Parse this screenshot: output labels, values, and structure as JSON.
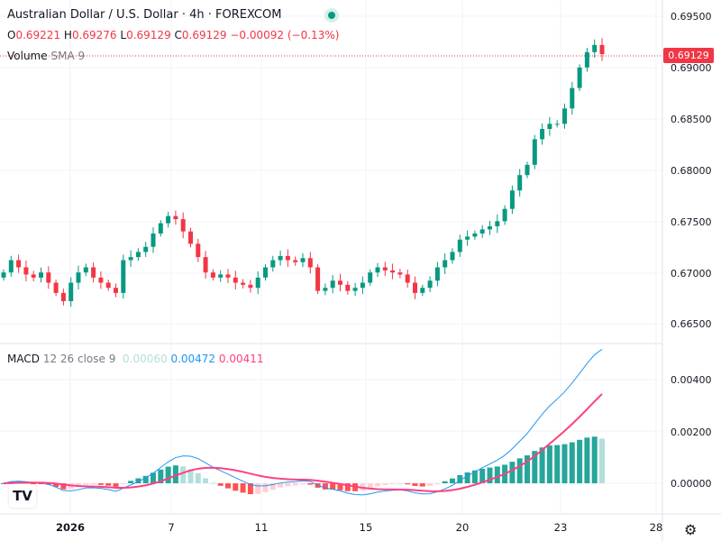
{
  "header": {
    "title": "Australian Dollar / U.S. Dollar · 4h · FOREXCOM",
    "ohlc": {
      "o_label": "O",
      "o": "0.69221",
      "h_label": "H",
      "h": "0.69276",
      "l_label": "L",
      "l": "0.69129",
      "c_label": "C",
      "c": "0.69129",
      "change": "−0.00092 (−0.13%)"
    },
    "volume_label": "Volume",
    "volume_sma": "SMA 9"
  },
  "macd_legend": {
    "name": "MACD",
    "params": "12 26 close 9",
    "hist": "0.00060",
    "macd": "0.00472",
    "signal": "0.00411"
  },
  "price_axis": [
    "0.69500",
    "0.69000",
    "0.68500",
    "0.68000",
    "0.67500",
    "0.67000",
    "0.66500"
  ],
  "macd_axis": [
    "0.00400",
    "0.00200",
    "0.00000"
  ],
  "last_price": "0.69129",
  "date_axis": [
    "2026",
    "7",
    "11",
    "15",
    "20",
    "23",
    "28"
  ],
  "colors": {
    "up": "#089981",
    "down": "#f23645",
    "macd": "#2196f3",
    "signal": "#ff4081",
    "hist_up": "#26a69a",
    "hist_up_light": "#b2dfdb",
    "hist_down": "#ff5252",
    "hist_down_light": "#ffcdd2"
  },
  "chart_data": {
    "type": "candlestick",
    "timeframe": "4h",
    "price_range": [
      0.665,
      0.695
    ],
    "macd_range": [
      -0.0005,
      0.0047
    ],
    "closes": [
      0.67,
      0.6712,
      0.6705,
      0.6698,
      0.6695,
      0.67,
      0.669,
      0.668,
      0.6672,
      0.669,
      0.67,
      0.6705,
      0.6695,
      0.669,
      0.6685,
      0.668,
      0.6712,
      0.6715,
      0.672,
      0.6725,
      0.6738,
      0.6748,
      0.6755,
      0.6752,
      0.674,
      0.6728,
      0.6715,
      0.67,
      0.6695,
      0.6698,
      0.6695,
      0.669,
      0.6688,
      0.6685,
      0.6695,
      0.6705,
      0.6712,
      0.6716,
      0.6712,
      0.671,
      0.6714,
      0.6705,
      0.6682,
      0.6685,
      0.6692,
      0.6688,
      0.6682,
      0.6685,
      0.669,
      0.67,
      0.6705,
      0.6702,
      0.67,
      0.6698,
      0.669,
      0.668,
      0.6685,
      0.6692,
      0.6705,
      0.6712,
      0.672,
      0.6732,
      0.6735,
      0.6738,
      0.6742,
      0.6745,
      0.675,
      0.6762,
      0.678,
      0.6795,
      0.6805,
      0.683,
      0.684,
      0.6845,
      0.6845,
      0.686,
      0.688,
      0.69,
      0.6915,
      0.6922,
      0.6913
    ]
  }
}
